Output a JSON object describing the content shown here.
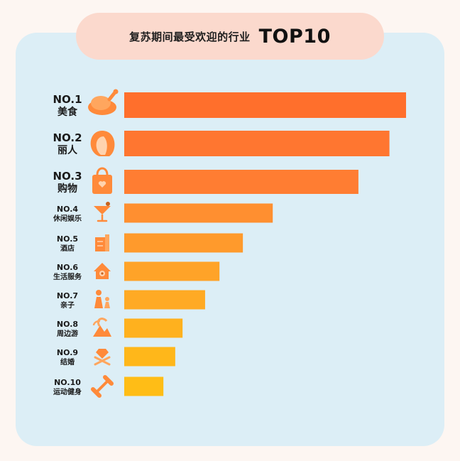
{
  "header": {
    "title_prefix": "复苏期间最受欢迎的行业",
    "title_strong": "TOP10"
  },
  "chart_data": {
    "type": "bar",
    "orientation": "horizontal",
    "title": "复苏期间最受欢迎的行业 TOP10",
    "categories": [
      {
        "rank": "NO.1",
        "name": "美食",
        "icon": "roast-chicken-icon"
      },
      {
        "rank": "NO.2",
        "name": "丽人",
        "icon": "woman-profile-icon"
      },
      {
        "rank": "NO.3",
        "name": "购物",
        "icon": "shopping-bag-icon"
      },
      {
        "rank": "NO.4",
        "name": "休闲娱乐",
        "icon": "cocktail-icon"
      },
      {
        "rank": "NO.5",
        "name": "酒店",
        "icon": "hotel-building-icon"
      },
      {
        "rank": "NO.6",
        "name": "生活服务",
        "icon": "house-pin-icon"
      },
      {
        "rank": "NO.7",
        "name": "亲子",
        "icon": "parent-child-icon"
      },
      {
        "rank": "NO.8",
        "name": "周边游",
        "icon": "palm-island-icon"
      },
      {
        "rank": "NO.9",
        "name": "结婚",
        "icon": "diamond-ring-icon"
      },
      {
        "rank": "NO.10",
        "name": "运动健身",
        "icon": "dumbbell-icon"
      }
    ],
    "values": [
      100,
      94.1,
      83.1,
      52.7,
      42.1,
      33.8,
      28.7,
      20.7,
      18.1,
      13.9
    ],
    "colors": [
      "#ff6f2c",
      "#ff7630",
      "#ff7d32",
      "#ff8f30",
      "#ff9a2c",
      "#ffa328",
      "#ffaa24",
      "#ffb11e",
      "#ffb71a",
      "#ffbd16"
    ],
    "axis": {
      "xlim": [
        0,
        100
      ],
      "grid": false,
      "show_ticks": false
    }
  }
}
